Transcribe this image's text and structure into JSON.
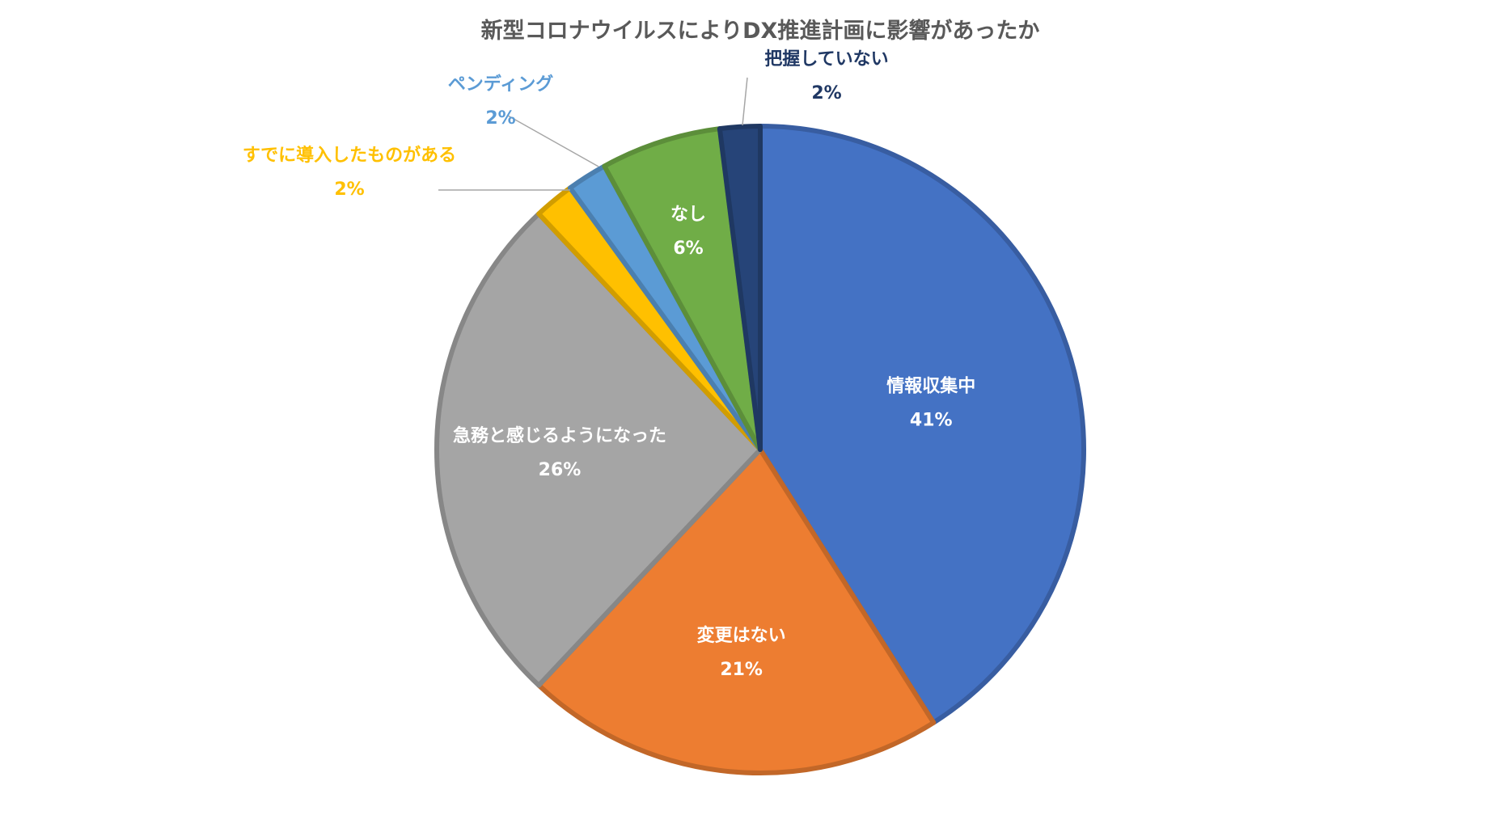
{
  "chart_data": {
    "type": "pie",
    "title": "新型コロナウイルスによりDX推進計画に影響があったか",
    "slices": [
      {
        "label": "情報収集中",
        "value": 41,
        "value_label": "41%",
        "color": "#4472C4",
        "label_color": "#FFFFFF"
      },
      {
        "label": "変更はない",
        "value": 21,
        "value_label": "21%",
        "color": "#ED7D31",
        "label_color": "#FFFFFF"
      },
      {
        "label": "急務と感じるようになった",
        "value": 26,
        "value_label": "26%",
        "color": "#A5A5A5",
        "label_color": "#FFFFFF"
      },
      {
        "label": "すでに導入したものがある",
        "value": 2,
        "value_label": "2%",
        "color": "#FFC000",
        "label_color": "#FFC000"
      },
      {
        "label": "ペンディング",
        "value": 2,
        "value_label": "2%",
        "color": "#5B9BD5",
        "label_color": "#5B9BD5"
      },
      {
        "label": "なし",
        "value": 6,
        "value_label": "6%",
        "color": "#70AD47",
        "label_color": "#FFFFFF"
      },
      {
        "label": "把握していない",
        "value": 2,
        "value_label": "2%",
        "color": "#264478",
        "label_color": "#203864"
      }
    ],
    "legend": "none",
    "start": "top, clockwise"
  }
}
